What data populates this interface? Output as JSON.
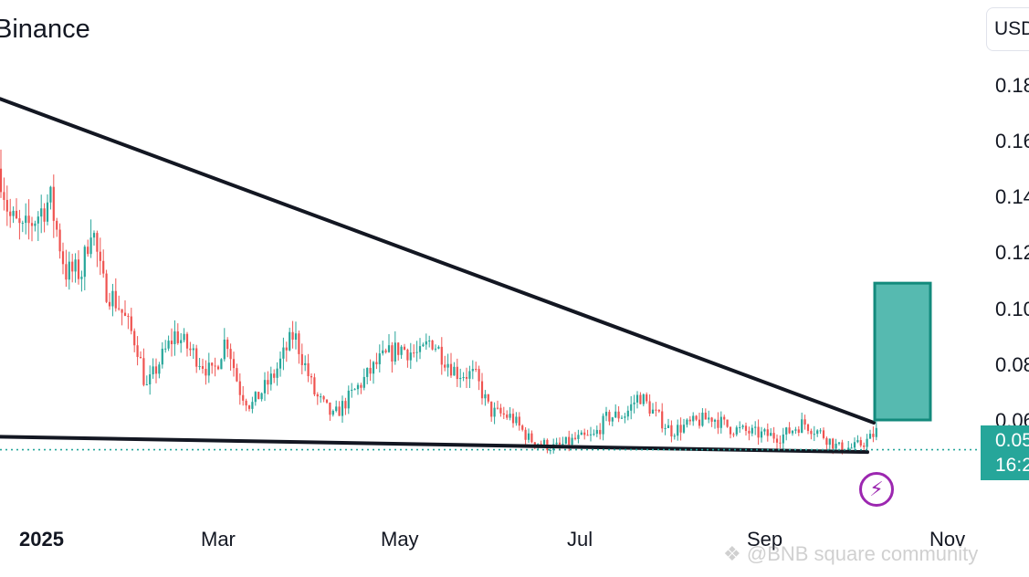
{
  "title": "Binance",
  "currency": "USD",
  "price_badge": {
    "price": "0.05",
    "countdown": "16:2"
  },
  "watermark": "@BNB square community",
  "colors": {
    "up": "#26a69a",
    "down": "#ef5350",
    "trendline": "#131722",
    "target_box": "#26a69a",
    "bolt": "#9c27b0"
  },
  "icons": {
    "bolt": "lightning-bolt-icon",
    "watermark_logo": "binance-logo-icon"
  },
  "chart_data": {
    "type": "candlestick",
    "x_ticks": [
      "2025",
      "Mar",
      "May",
      "Jul",
      "Sep",
      "Nov"
    ],
    "y_ticks": [
      "0.18",
      "0.16",
      "0.14",
      "0.12",
      "0.10",
      "0.08",
      "0.06"
    ],
    "ylim": [
      0.034,
      0.194
    ],
    "last_price": 0.05,
    "series_profile": [
      [
        0,
        0.15
      ],
      [
        10,
        0.133
      ],
      [
        25,
        0.127
      ],
      [
        40,
        0.133
      ],
      [
        55,
        0.139
      ],
      [
        72,
        0.113
      ],
      [
        90,
        0.113
      ],
      [
        100,
        0.131
      ],
      [
        112,
        0.109
      ],
      [
        130,
        0.101
      ],
      [
        150,
        0.087
      ],
      [
        160,
        0.071
      ],
      [
        175,
        0.081
      ],
      [
        192,
        0.091
      ],
      [
        205,
        0.086
      ],
      [
        220,
        0.081
      ],
      [
        233,
        0.076
      ],
      [
        248,
        0.09
      ],
      [
        262,
        0.071
      ],
      [
        275,
        0.065
      ],
      [
        300,
        0.076
      ],
      [
        322,
        0.091
      ],
      [
        345,
        0.069
      ],
      [
        365,
        0.061
      ],
      [
        390,
        0.071
      ],
      [
        415,
        0.081
      ],
      [
        438,
        0.086
      ],
      [
        460,
        0.083
      ],
      [
        472,
        0.089
      ],
      [
        485,
        0.083
      ],
      [
        500,
        0.077
      ],
      [
        520,
        0.076
      ],
      [
        537,
        0.063
      ],
      [
        560,
        0.061
      ],
      [
        580,
        0.053
      ],
      [
        608,
        0.05
      ],
      [
        630,
        0.053
      ],
      [
        650,
        0.054
      ],
      [
        665,
        0.061
      ],
      [
        685,
        0.062
      ],
      [
        700,
        0.069
      ],
      [
        715,
        0.063
      ],
      [
        735,
        0.056
      ],
      [
        760,
        0.059
      ],
      [
        780,
        0.061
      ],
      [
        800,
        0.057
      ],
      [
        830,
        0.055
      ],
      [
        855,
        0.054
      ],
      [
        880,
        0.059
      ],
      [
        900,
        0.055
      ],
      [
        918,
        0.05
      ],
      [
        935,
        0.05
      ],
      [
        952,
        0.053
      ],
      [
        960,
        0.056
      ]
    ],
    "trendlines": [
      {
        "name": "descending-resistance",
        "points": [
          [
            0,
            0.175
          ],
          [
            957,
            0.059
          ]
        ]
      },
      {
        "name": "support",
        "points": [
          [
            0,
            0.054
          ],
          [
            950,
            0.0485
          ]
        ]
      }
    ],
    "target_box": {
      "x_start": 958,
      "x_end": 1019,
      "y_low": 0.06,
      "y_high": 0.109
    },
    "grid": false,
    "price_line": "dotted"
  }
}
